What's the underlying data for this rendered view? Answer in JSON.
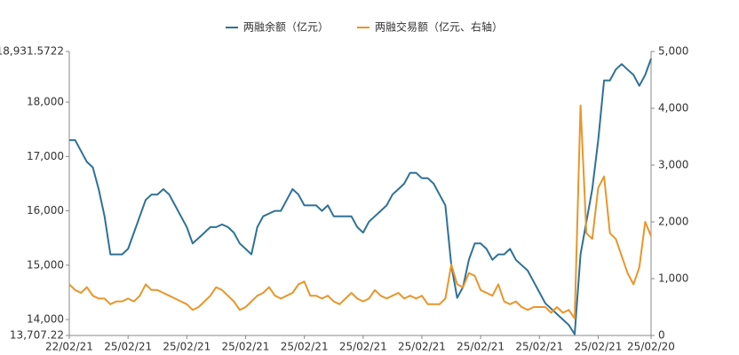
{
  "chart_data": {
    "type": "line",
    "categories": [
      "22/02/21",
      null,
      null,
      null,
      null,
      null,
      null,
      null,
      null,
      null,
      "25/02/21",
      null,
      null,
      null,
      null,
      null,
      null,
      null,
      null,
      null,
      "25/02/21",
      null,
      null,
      null,
      null,
      null,
      null,
      null,
      null,
      null,
      "25/02/21",
      null,
      null,
      null,
      null,
      null,
      null,
      null,
      null,
      null,
      "25/02/21",
      null,
      null,
      null,
      null,
      null,
      null,
      null,
      null,
      null,
      "25/02/21",
      null,
      null,
      null,
      null,
      null,
      null,
      null,
      null,
      null,
      "25/02/21",
      null,
      null,
      null,
      null,
      null,
      null,
      null,
      null,
      null,
      "25/02/21",
      null,
      null,
      null,
      null,
      null,
      null,
      null,
      null,
      null,
      "25/02/21",
      null,
      null,
      null,
      null,
      null,
      null,
      null,
      null,
      null,
      "25/02/21",
      null,
      null,
      null,
      null,
      null,
      null,
      null,
      null,
      "25/02/20"
    ],
    "series": [
      {
        "name": "两融余额（亿元）",
        "color": "#2e7198",
        "axis": "y",
        "values": [
          17300,
          17300,
          17100,
          16900,
          16800,
          16400,
          15900,
          15200,
          15200,
          15200,
          15300,
          15600,
          15900,
          16200,
          16300,
          16300,
          16400,
          16300,
          16100,
          15900,
          15700,
          15400,
          15500,
          15600,
          15700,
          15700,
          15750,
          15700,
          15600,
          15400,
          15300,
          15200,
          15700,
          15900,
          15950,
          16000,
          16000,
          16200,
          16400,
          16300,
          16100,
          16100,
          16100,
          16000,
          16100,
          15900,
          15900,
          15900,
          15900,
          15700,
          15600,
          15800,
          15900,
          16000,
          16100,
          16300,
          16400,
          16500,
          16700,
          16700,
          16600,
          16600,
          16500,
          16300,
          16100,
          15000,
          14400,
          14600,
          15100,
          15400,
          15400,
          15300,
          15100,
          15200,
          15200,
          15300,
          15100,
          15000,
          14900,
          14700,
          14500,
          14300,
          14200,
          14100,
          14000,
          13900,
          13730,
          15200,
          15800,
          16400,
          17300,
          18400,
          18400,
          18600,
          18700,
          18600,
          18500,
          18300,
          18500,
          18800
        ]
      },
      {
        "name": "两融交易额（亿元、右轴）",
        "color": "#e8962a",
        "axis": "y2",
        "values": [
          900,
          800,
          750,
          850,
          700,
          650,
          650,
          550,
          600,
          600,
          650,
          600,
          700,
          900,
          800,
          800,
          750,
          700,
          650,
          600,
          550,
          450,
          500,
          600,
          700,
          850,
          800,
          700,
          600,
          450,
          500,
          600,
          700,
          750,
          850,
          700,
          650,
          700,
          750,
          900,
          950,
          700,
          700,
          650,
          700,
          600,
          550,
          650,
          750,
          650,
          600,
          650,
          800,
          700,
          650,
          700,
          750,
          650,
          700,
          650,
          700,
          550,
          550,
          550,
          650,
          1250,
          900,
          850,
          1100,
          1050,
          800,
          750,
          700,
          900,
          600,
          550,
          600,
          500,
          450,
          500,
          500,
          500,
          400,
          500,
          400,
          450,
          300,
          4050,
          1800,
          1700,
          2600,
          2800,
          1800,
          1700,
          1400,
          1100,
          900,
          1200,
          2000,
          1750
        ]
      }
    ],
    "ylim": [
      13707.22,
      18931.5722
    ],
    "yticks": [
      {
        "value": 13707.22,
        "label": "13,707.22"
      },
      {
        "value": 14000,
        "label": "14,000"
      },
      {
        "value": 15000,
        "label": "15,000"
      },
      {
        "value": 16000,
        "label": "16,000"
      },
      {
        "value": 17000,
        "label": "17,000"
      },
      {
        "value": 18000,
        "label": "18,000"
      },
      {
        "value": 18931.5722,
        "label": "18,931.5722"
      }
    ],
    "y2lim": [
      0,
      5000
    ],
    "y2ticks": [
      0,
      {
        "value": 1000,
        "label": "1,000"
      },
      {
        "value": 2000,
        "label": "2,000"
      },
      {
        "value": 3000,
        "label": "3,000"
      },
      {
        "value": 4000,
        "label": "4,000"
      },
      {
        "value": 5000,
        "label": "5,000"
      }
    ],
    "grid": false,
    "legend": "top"
  }
}
